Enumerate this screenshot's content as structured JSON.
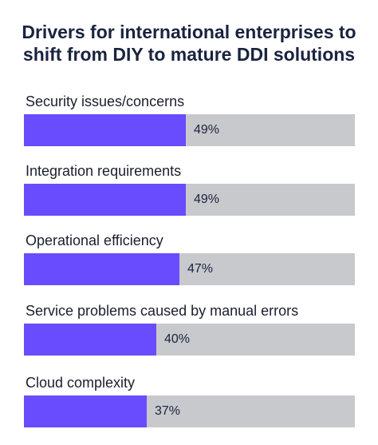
{
  "chart_data": {
    "type": "bar",
    "orientation": "horizontal",
    "title_lines": [
      "Drivers for international enterprises to",
      "shift from DIY to mature DDI solutions"
    ],
    "categories": [
      "Security issues/concerns",
      "Integration requirements",
      "Operational efficiency",
      "Service problems caused by manual errors",
      "Cloud complexity"
    ],
    "values": [
      49,
      49,
      47,
      40,
      37
    ],
    "value_labels": [
      "49%",
      "49%",
      "47%",
      "40%",
      "37%"
    ],
    "xlim": [
      0,
      100
    ],
    "grid": false,
    "legend": "none",
    "bar_color": "#6a4cff",
    "track_color": "#c8c9cc"
  }
}
